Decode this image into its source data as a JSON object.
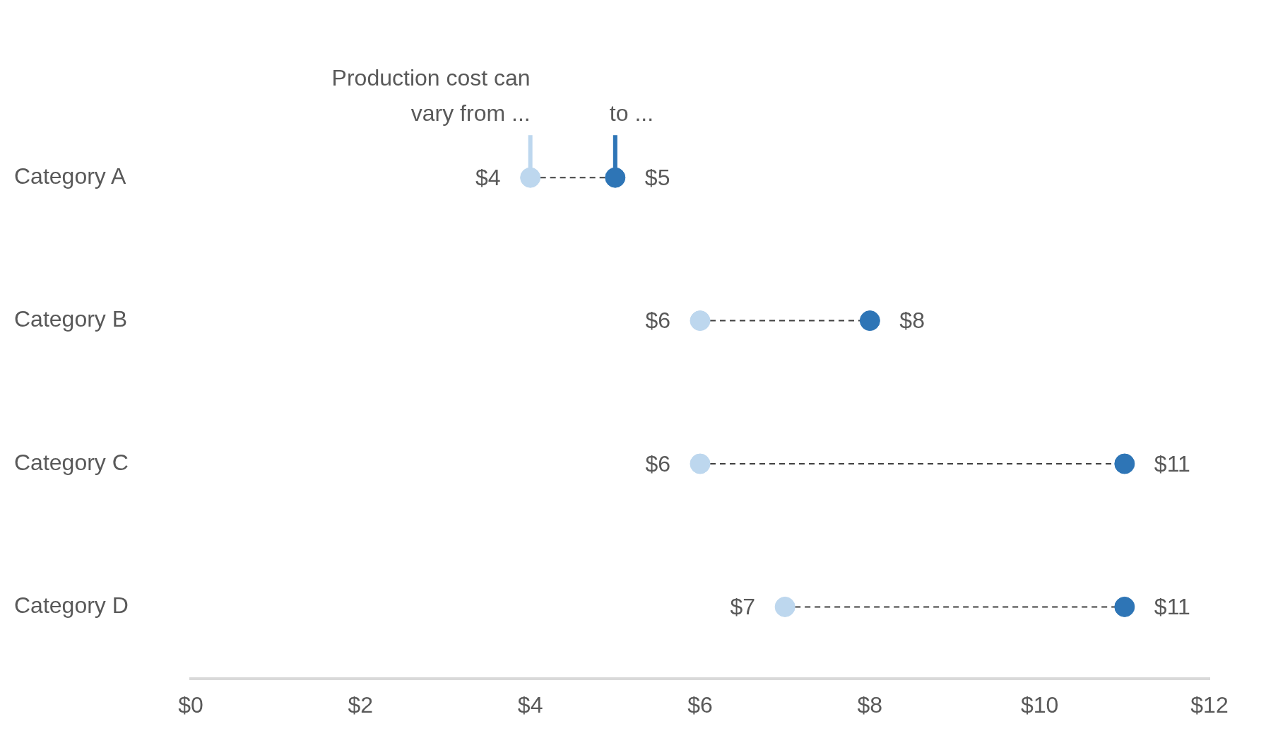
{
  "chart_data": {
    "type": "scatter",
    "orientation": "horizontal",
    "categories": [
      "Category A",
      "Category B",
      "Category C",
      "Category D"
    ],
    "series": [
      {
        "color": "#bdd7ee",
        "values": [
          4,
          6,
          6,
          7
        ],
        "value_labels": [
          "$4",
          "$6",
          "$6",
          "$7"
        ]
      },
      {
        "color": "#2e75b6",
        "values": [
          5,
          8,
          11,
          11
        ],
        "value_labels": [
          "$5",
          "$8",
          "$11",
          "$11"
        ]
      }
    ],
    "xlim": [
      0,
      12
    ],
    "xticks": [
      {
        "value": 0,
        "label": "$0"
      },
      {
        "value": 2,
        "label": "$2"
      },
      {
        "value": 4,
        "label": "$4"
      },
      {
        "value": 6,
        "label": "$6"
      },
      {
        "value": 8,
        "label": "$8"
      },
      {
        "value": 10,
        "label": "$10"
      },
      {
        "value": 12,
        "label": "$12"
      }
    ],
    "annotations": [
      {
        "text": "Production cost can\nvary from ...",
        "x": 4,
        "y": "Category A"
      },
      {
        "text": "to ...",
        "x": 5,
        "y": "Category A"
      }
    ],
    "marker": "circle",
    "grid": false,
    "legend": false
  }
}
